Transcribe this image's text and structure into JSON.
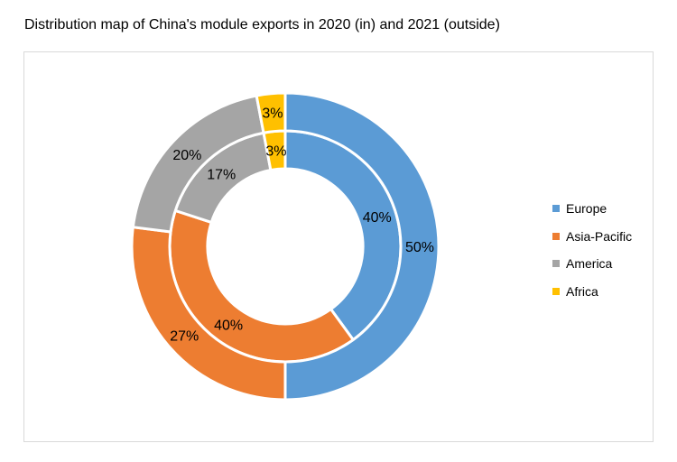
{
  "chart_data": {
    "type": "donut",
    "title": "Distribution map of China's module exports in 2020 (in) and 2021 (outside)",
    "categories": [
      "Europe",
      "Asia-Pacific",
      "America",
      "Africa"
    ],
    "colors": [
      "#5B9BD5",
      "#ED7D31",
      "#A5A5A5",
      "#FFC000"
    ],
    "series": [
      {
        "ring": "inner",
        "values": [
          40,
          40,
          17,
          3
        ],
        "labels": [
          "40%",
          "40%",
          "17%",
          "3%"
        ]
      },
      {
        "ring": "outer",
        "values": [
          50,
          27,
          20,
          3
        ],
        "labels": [
          "50%",
          "27%",
          "20%",
          "3%"
        ]
      }
    ],
    "legend": "right"
  }
}
